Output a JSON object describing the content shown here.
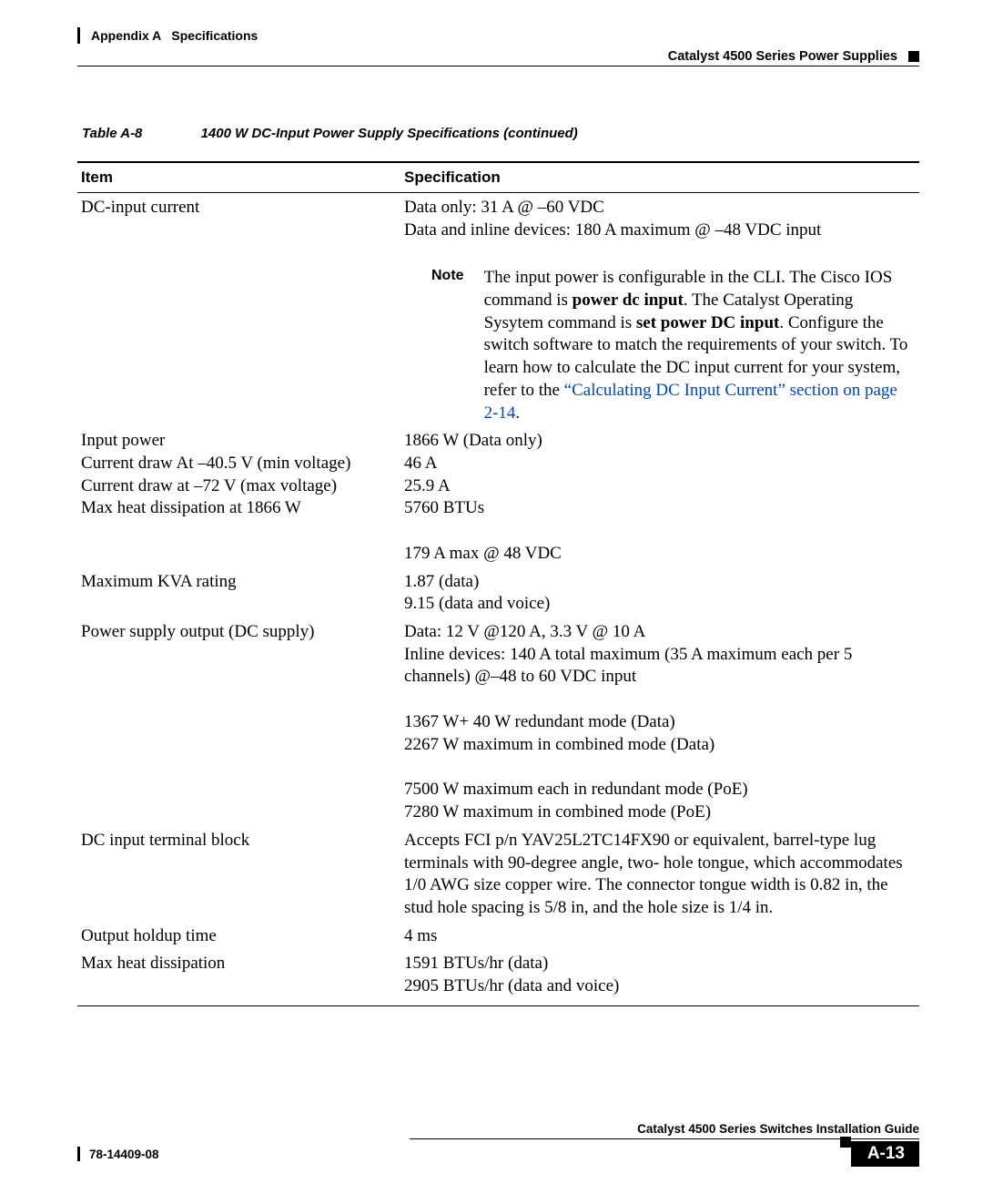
{
  "header": {
    "appendix": "Appendix A   Specifications",
    "section": "Catalyst 4500 Series Power Supplies"
  },
  "table_caption": {
    "number": "Table A-8",
    "title": "1400 W DC-Input Power Supply Specifications (continued)"
  },
  "columns": {
    "item": "Item",
    "spec": "Specification"
  },
  "rows": {
    "dc_input_current": {
      "item": "DC-input current",
      "spec_line1": "Data only: 31 A @ –60 VDC",
      "spec_line2": "Data and inline devices: 180 A maximum @ –48 VDC input",
      "note_label": "Note",
      "note_p1": "The input power is configurable in the CLI. The Cisco IOS command is ",
      "note_b1": "power dc input",
      "note_p2": ". The Catalyst Operating Sysytem command is ",
      "note_b2": "set power DC input",
      "note_p3": ". Configure the switch software to match the requirements of your switch. To learn how to calculate the DC input current for your system, refer to the ",
      "note_link": "“Calculating DC Input Current” section on page 2-14",
      "note_p4": "."
    },
    "input_power": {
      "item_l1": "Input power",
      "item_l2": "Current draw At –40.5 V (min voltage)",
      "item_l3": "Current draw at –72 V (max voltage)",
      "item_l4": "Max heat dissipation at 1866 W",
      "spec_l1": "1866 W (Data only)",
      "spec_l2": "46 A",
      "spec_l3": "25.9 A",
      "spec_l4": "5760 BTUs",
      "spec_extra": "179 A max @ 48 VDC"
    },
    "kva": {
      "item": "Maximum KVA rating",
      "spec_l1": "1.87 (data)",
      "spec_l2": "9.15 (data and voice)"
    },
    "output": {
      "item": "Power supply output (DC supply)",
      "p1_l1": "Data: 12 V @120 A, 3.3 V @ 10 A",
      "p1_l2": "Inline devices: 140 A total maximum (35 A maximum each per 5 channels) @–48 to 60 VDC input",
      "p2_l1": "1367 W+ 40 W redundant mode (Data)",
      "p2_l2": "2267 W maximum in combined mode (Data)",
      "p3_l1": "7500 W maximum each in redundant mode (PoE)",
      "p3_l2": "7280 W maximum in combined mode (PoE)"
    },
    "terminal": {
      "item": "DC input terminal block",
      "spec": "Accepts FCI p/n YAV25L2TC14FX90 or equivalent, barrel-type lug terminals with 90-degree angle, two- hole tongue, which accommodates 1/0 AWG size copper wire. The connector tongue width is 0.82 in, the stud hole spacing is 5/8 in, and the hole size is 1/4 in."
    },
    "holdup": {
      "item": "Output holdup time",
      "spec": "4 ms"
    },
    "heat": {
      "item": "Max heat dissipation",
      "spec_l1": "1591 BTUs/hr (data)",
      "spec_l2": "2905 BTUs/hr (data and voice)"
    }
  },
  "footer": {
    "guide": "Catalyst 4500 Series Switches Installation Guide",
    "docnum": "78-14409-08",
    "page": "A-13"
  }
}
